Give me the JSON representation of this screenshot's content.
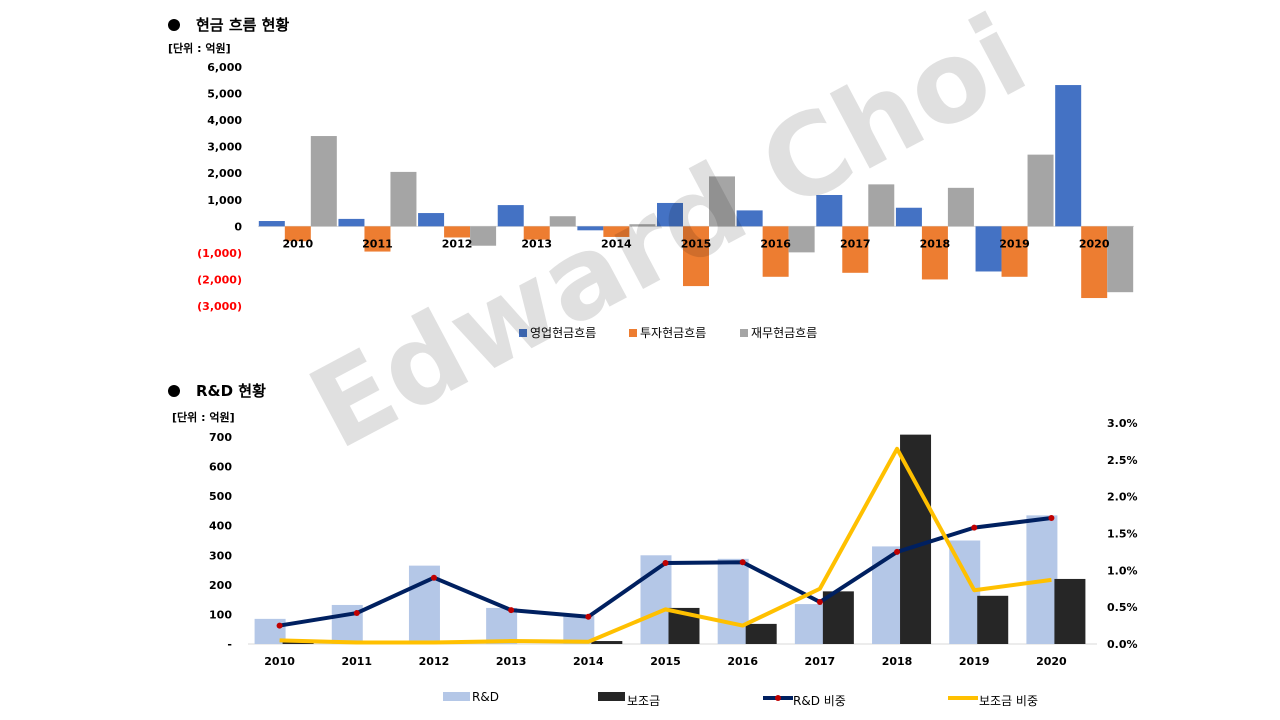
{
  "sections": {
    "cash_flow": {
      "title": "현금 흐름 현황",
      "unit": "[단위 : 억원]"
    },
    "rnd": {
      "title": "R&D 현황",
      "unit": "[단위 : 억원]"
    }
  },
  "watermark": "Edward Choi",
  "colors": {
    "operating": "#4472C4",
    "investing": "#ED7D31",
    "financing": "#A5A5A5",
    "rnd": "#B4C7E7",
    "subsidy": "#262626",
    "rnd_ratio": "#002060",
    "subsidy_ratio": "#FFC000",
    "marker": "#C00000",
    "negative_tick": "#FF0000"
  },
  "chart_data": [
    {
      "type": "bar",
      "categories": [
        "2010",
        "2011",
        "2012",
        "2013",
        "2014",
        "2015",
        "2016",
        "2017",
        "2018",
        "2019",
        "2020"
      ],
      "series": [
        {
          "name": "영업현금흐름",
          "values": [
            200,
            280,
            500,
            800,
            -150,
            880,
            600,
            1180,
            700,
            -1700,
            5320
          ]
        },
        {
          "name": "투자현금흐름",
          "values": [
            -560,
            -950,
            -420,
            -500,
            -400,
            -2250,
            -1900,
            -1750,
            -2000,
            -1900,
            -2700
          ]
        },
        {
          "name": "재무현금흐름",
          "values": [
            3400,
            2050,
            -730,
            380,
            80,
            1880,
            -980,
            1580,
            1450,
            2700,
            -2480
          ]
        }
      ],
      "ylim": [
        -3000,
        6000
      ],
      "yticks": [
        "(3,000)",
        "(2,000)",
        "(1,000)",
        "0",
        "1,000",
        "2,000",
        "3,000",
        "4,000",
        "5,000",
        "6,000"
      ],
      "legend": "bottom"
    },
    {
      "type": "bar",
      "categories": [
        "2010",
        "2011",
        "2012",
        "2013",
        "2014",
        "2015",
        "2016",
        "2017",
        "2018",
        "2019",
        "2020"
      ],
      "series": [
        {
          "name": "R&D",
          "values": [
            85,
            132,
            265,
            122,
            95,
            300,
            288,
            135,
            330,
            350,
            435
          ],
          "axis": "left"
        },
        {
          "name": "보조금",
          "values": [
            15,
            0,
            0,
            0,
            10,
            122,
            68,
            178,
            708,
            163,
            220
          ],
          "axis": "left"
        },
        {
          "name": "R&D 비중",
          "type": "line",
          "values": [
            0.0025,
            0.0042,
            0.009,
            0.0046,
            0.0037,
            0.011,
            0.0111,
            0.0057,
            0.0125,
            0.0158,
            0.0171
          ],
          "axis": "right"
        },
        {
          "name": "보조금 비중",
          "type": "line",
          "values": [
            0.0005,
            0.0002,
            0.0002,
            0.0004,
            0.0003,
            0.0047,
            0.0025,
            0.0075,
            0.0265,
            0.0073,
            0.0087
          ],
          "axis": "right"
        }
      ],
      "ylim": [
        0,
        700
      ],
      "yticks": [
        "-",
        "100",
        "200",
        "300",
        "400",
        "500",
        "600",
        "700"
      ],
      "y2lim": [
        0,
        0.03
      ],
      "y2ticks": [
        "0.0%",
        "0.5%",
        "1.0%",
        "1.5%",
        "2.0%",
        "2.5%",
        "3.0%"
      ],
      "legend": "bottom"
    }
  ]
}
